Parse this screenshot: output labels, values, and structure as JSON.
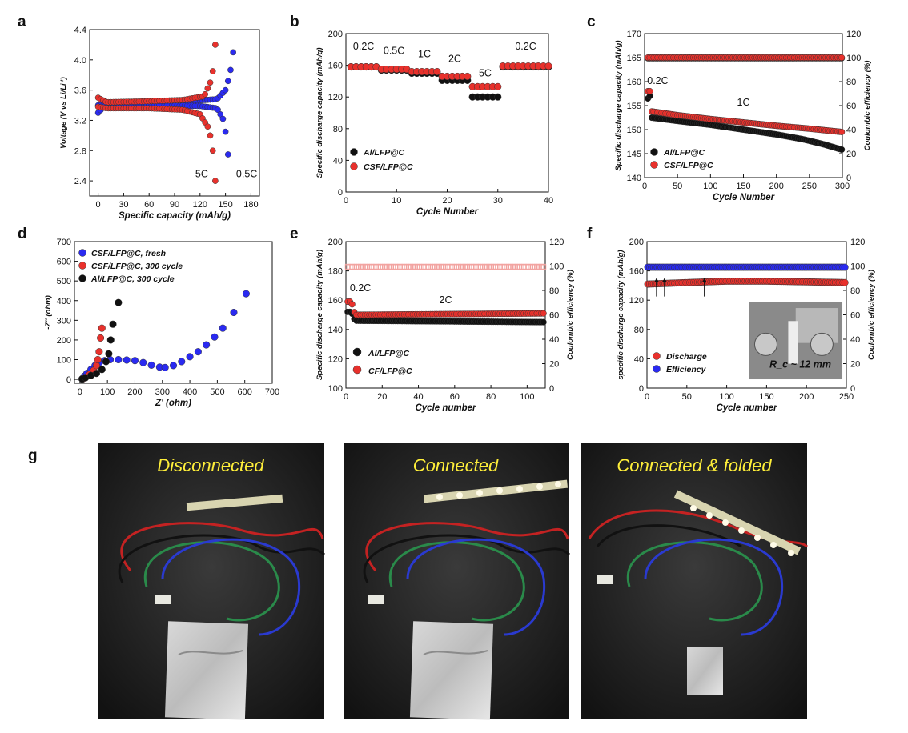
{
  "figure": {
    "panel_labels": [
      "a",
      "b",
      "c",
      "d",
      "e",
      "f",
      "g"
    ]
  },
  "colors": {
    "black": "#111111",
    "red": "#e8312c",
    "blue": "#2a2af0",
    "photo_bg": "#1c1c1c"
  },
  "chart_data": [
    {
      "id": "a",
      "type": "line",
      "xlabel": "Specific capacity (mAh/g)",
      "ylabel": "Voltage (V vs Li/Li⁺)",
      "xlim": [
        -10,
        190
      ],
      "ylim": [
        2.2,
        4.4
      ],
      "xticks": [
        "0",
        "30",
        "60",
        "90",
        "120",
        "150",
        "180"
      ],
      "yticks": [
        "2.4",
        "2.8",
        "3.2",
        "3.6",
        "4.0",
        "4.4"
      ],
      "annotations": [
        "5C",
        "0.5C"
      ],
      "series": [
        {
          "color": "#2a2af0",
          "charge": [
            [
              0,
              3.3
            ],
            [
              10,
              3.42
            ],
            [
              40,
              3.44
            ],
            [
              100,
              3.45
            ],
            [
              140,
              3.48
            ],
            [
              150,
              3.6
            ],
            [
              155,
              3.8
            ],
            [
              158,
              4.0
            ],
            [
              160,
              4.2
            ]
          ],
          "discharge": [
            [
              0,
              3.4
            ],
            [
              10,
              3.4
            ],
            [
              60,
              3.4
            ],
            [
              120,
              3.39
            ],
            [
              140,
              3.36
            ],
            [
              148,
              3.2
            ],
            [
              152,
              2.9
            ],
            [
              154,
              2.6
            ],
            [
              155,
              2.4
            ]
          ]
        },
        {
          "color": "#e8312c",
          "charge": [
            [
              0,
              3.5
            ],
            [
              10,
              3.44
            ],
            [
              50,
              3.45
            ],
            [
              100,
              3.47
            ],
            [
              125,
              3.52
            ],
            [
              132,
              3.7
            ],
            [
              136,
              3.9
            ],
            [
              138,
              4.2
            ]
          ],
          "discharge": [
            [
              0,
              3.38
            ],
            [
              10,
              3.36
            ],
            [
              60,
              3.36
            ],
            [
              100,
              3.34
            ],
            [
              120,
              3.28
            ],
            [
              130,
              3.1
            ],
            [
              134,
              2.9
            ],
            [
              137,
              2.6
            ],
            [
              138,
              2.4
            ]
          ]
        }
      ]
    },
    {
      "id": "b",
      "type": "scatter",
      "xlabel": "Cycle Number",
      "ylabel": "Specific discharge capacity (mAh/g)",
      "xlim": [
        0,
        40
      ],
      "ylim": [
        0,
        200
      ],
      "xticks": [
        "0",
        "10",
        "20",
        "30",
        "40"
      ],
      "yticks": [
        "0",
        "40",
        "80",
        "120",
        "160",
        "200"
      ],
      "annotations": [
        "0.2C",
        "0.5C",
        "1C",
        "2C",
        "5C",
        "0.2C"
      ],
      "legend": [
        "Al/LFP@C",
        "CSF/LFP@C"
      ],
      "series": [
        {
          "name": "Al/LFP@C",
          "color": "#111111",
          "steps": [
            [
              1,
              6,
              158
            ],
            [
              7,
              12,
              154
            ],
            [
              13,
              18,
              150
            ],
            [
              19,
              24,
              141
            ],
            [
              25,
              30,
              120
            ],
            [
              31,
              40,
              158
            ]
          ]
        },
        {
          "name": "CSF/LFP@C",
          "color": "#e8312c",
          "steps": [
            [
              1,
              6,
              158
            ],
            [
              7,
              12,
              155
            ],
            [
              13,
              18,
              152
            ],
            [
              19,
              24,
              146
            ],
            [
              25,
              30,
              133
            ],
            [
              31,
              40,
              159
            ]
          ]
        }
      ]
    },
    {
      "id": "c",
      "type": "scatter",
      "xlabel": "Cycle Number",
      "ylabel": "Specific discharge capacity (mAh/g)",
      "y2label": "Coulombic efficiency (%)",
      "xlim": [
        0,
        300
      ],
      "ylim": [
        140,
        170
      ],
      "y2lim": [
        0,
        120
      ],
      "xticks": [
        "0",
        "50",
        "100",
        "150",
        "200",
        "250",
        "300"
      ],
      "yticks": [
        "140",
        "145",
        "150",
        "155",
        "160",
        "165",
        "170"
      ],
      "y2ticks": [
        "0",
        "20",
        "40",
        "60",
        "80",
        "100",
        "120"
      ],
      "annotations": [
        "0.2C",
        "1C"
      ],
      "legend": [
        "Al/LFP@C",
        "CSF/LFP@C"
      ],
      "series": [
        {
          "name": "Al/LFP@C",
          "color": "#111111",
          "capacity": [
            [
              5,
              156.5
            ],
            [
              8,
              157
            ],
            [
              10,
              152.5
            ],
            [
              50,
              151.8
            ],
            [
              100,
              151
            ],
            [
              150,
              150
            ],
            [
              200,
              149
            ],
            [
              240,
              148
            ],
            [
              270,
              147
            ],
            [
              300,
              145.8
            ]
          ],
          "efficiency": 99.5
        },
        {
          "name": "CSF/LFP@C",
          "color": "#e8312c",
          "capacity": [
            [
              5,
              158
            ],
            [
              8,
              158
            ],
            [
              10,
              153.8
            ],
            [
              50,
              153
            ],
            [
              100,
              152.2
            ],
            [
              150,
              151.5
            ],
            [
              200,
              150.8
            ],
            [
              250,
              150.2
            ],
            [
              300,
              149.5
            ]
          ],
          "efficiency": 100
        }
      ]
    },
    {
      "id": "d",
      "type": "scatter",
      "xlabel": "Z' (ohm)",
      "ylabel": "-Z'' (ohm)",
      "xlim": [
        -20,
        700
      ],
      "ylim": [
        -20,
        700
      ],
      "xticks": [
        "0",
        "100",
        "200",
        "300",
        "400",
        "500",
        "600",
        "700"
      ],
      "yticks": [
        "0",
        "100",
        "200",
        "300",
        "400",
        "500",
        "600",
        "700"
      ],
      "legend": [
        "CSF/LFP@C, fresh",
        "CSF/LFP@C, 300 cycle",
        "Al/LFP@C, 300 cycle"
      ],
      "series": [
        {
          "name": "CSF/LFP@C, fresh",
          "color": "#2a2af0",
          "points": [
            [
              8,
              2
            ],
            [
              15,
              15
            ],
            [
              25,
              30
            ],
            [
              40,
              50
            ],
            [
              55,
              70
            ],
            [
              70,
              85
            ],
            [
              90,
              95
            ],
            [
              110,
              100
            ],
            [
              140,
              100
            ],
            [
              170,
              98
            ],
            [
              200,
              95
            ],
            [
              230,
              85
            ],
            [
              260,
              72
            ],
            [
              290,
              62
            ],
            [
              310,
              60
            ],
            [
              340,
              70
            ],
            [
              370,
              90
            ],
            [
              400,
              115
            ],
            [
              430,
              140
            ],
            [
              460,
              175
            ],
            [
              490,
              215
            ],
            [
              520,
              260
            ],
            [
              560,
              340
            ],
            [
              605,
              435
            ]
          ]
        },
        {
          "name": "CSF/LFP@C, 300 cycle",
          "color": "#e8312c",
          "points": [
            [
              10,
              2
            ],
            [
              20,
              10
            ],
            [
              35,
              25
            ],
            [
              50,
              45
            ],
            [
              60,
              70
            ],
            [
              65,
              100
            ],
            [
              70,
              140
            ],
            [
              75,
              210
            ],
            [
              80,
              260
            ]
          ]
        },
        {
          "name": "Al/LFP@C, 300 cycle",
          "color": "#111111",
          "points": [
            [
              8,
              2
            ],
            [
              20,
              8
            ],
            [
              40,
              20
            ],
            [
              60,
              30
            ],
            [
              80,
              50
            ],
            [
              95,
              90
            ],
            [
              105,
              130
            ],
            [
              112,
              200
            ],
            [
              120,
              280
            ],
            [
              140,
              390
            ]
          ]
        }
      ]
    },
    {
      "id": "e",
      "type": "scatter",
      "xlabel": "Cycle number",
      "ylabel": "Specific discharge capacity (mAh/g)",
      "y2label": "Coulombic efficiency (%)",
      "xlim": [
        0,
        110
      ],
      "ylim": [
        100,
        200
      ],
      "y2lim": [
        0,
        120
      ],
      "xticks": [
        "0",
        "20",
        "40",
        "60",
        "80",
        "100"
      ],
      "yticks": [
        "100",
        "120",
        "140",
        "160",
        "180",
        "200"
      ],
      "y2ticks": [
        "0",
        "20",
        "40",
        "60",
        "80",
        "100",
        "120"
      ],
      "annotations": [
        "0.2C",
        "2C"
      ],
      "legend": [
        "Al/LFP@C",
        "CF/LFP@C"
      ],
      "series": [
        {
          "name": "Al/LFP@C",
          "color": "#111111",
          "capacity": [
            [
              1,
              152
            ],
            [
              3,
              152
            ],
            [
              5,
              146
            ],
            [
              110,
              145
            ]
          ],
          "efficiency": 99
        },
        {
          "name": "CF/LFP@C",
          "color": "#e8312c",
          "capacity": [
            [
              1,
              159
            ],
            [
              3,
              159
            ],
            [
              5,
              150
            ],
            [
              110,
              151
            ]
          ],
          "efficiency": 99.5
        }
      ]
    },
    {
      "id": "f",
      "type": "scatter",
      "xlabel": "Cycle number",
      "ylabel": "specific discharge capacity (mAh/g)",
      "y2label": "Coulombic efficiency (%)",
      "xlim": [
        0,
        250
      ],
      "ylim": [
        0,
        200
      ],
      "y2lim": [
        0,
        120
      ],
      "xticks": [
        "0",
        "50",
        "100",
        "150",
        "200",
        "250"
      ],
      "yticks": [
        "0",
        "40",
        "80",
        "120",
        "160",
        "200"
      ],
      "y2ticks": [
        "0",
        "20",
        "40",
        "60",
        "80",
        "100",
        "120"
      ],
      "legend": [
        "Discharge",
        "Efficiency"
      ],
      "inset_label": "R_c ~ 12 mm",
      "arrows_at": [
        12,
        22,
        72
      ],
      "series": [
        {
          "name": "Discharge",
          "color": "#e8312c",
          "capacity": [
            [
              1,
              142
            ],
            [
              50,
              144
            ],
            [
              100,
              146
            ],
            [
              150,
              146
            ],
            [
              200,
              145
            ],
            [
              250,
              144
            ]
          ]
        },
        {
          "name": "Efficiency",
          "color": "#2a2af0",
          "efficiency": 99
        }
      ]
    }
  ],
  "photos": {
    "label": "g",
    "titles": [
      "Disconnected",
      "Connected",
      "Connected & folded"
    ]
  }
}
